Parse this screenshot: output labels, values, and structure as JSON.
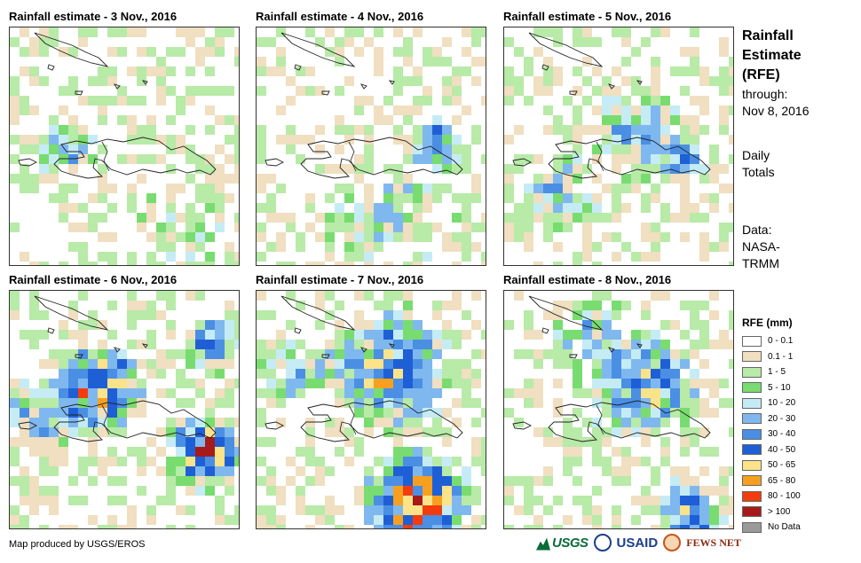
{
  "panels": [
    {
      "title": "Rainfall estimate - 3 Nov., 2016",
      "seed": 3
    },
    {
      "title": "Rainfall estimate - 4 Nov., 2016",
      "seed": 4
    },
    {
      "title": "Rainfall estimate - 5 Nov., 2016",
      "seed": 5
    },
    {
      "title": "Rainfall estimate - 6 Nov., 2016",
      "seed": 6
    },
    {
      "title": "Rainfall estimate - 7 Nov., 2016",
      "seed": 7
    },
    {
      "title": "Rainfall estimate - 8 Nov., 2016",
      "seed": 8
    }
  ],
  "side": {
    "title_line1": "Rainfall",
    "title_line2": "Estimate",
    "title_line3": "(RFE)",
    "through_line1": "through:",
    "through_line2": "Nov 8, 2016",
    "totals_line1": "Daily",
    "totals_line2": "Totals",
    "data_line1": "Data:",
    "data_line2": "NASA-",
    "data_line3": "TRMM"
  },
  "legend": {
    "title": "RFE (mm)",
    "items": [
      {
        "label": "0 - 0.1",
        "color": "#ffffff"
      },
      {
        "label": "0.1 - 1",
        "color": "#f0dfc0"
      },
      {
        "label": "1 - 5",
        "color": "#b8eaa8"
      },
      {
        "label": "5 - 10",
        "color": "#79dc70"
      },
      {
        "label": "10 - 20",
        "color": "#c5ecf5"
      },
      {
        "label": "20 - 30",
        "color": "#7fb8ee"
      },
      {
        "label": "30 - 40",
        "color": "#4a8fe4"
      },
      {
        "label": "40 - 50",
        "color": "#1f5fd6"
      },
      {
        "label": "50 - 65",
        "color": "#fbe38a"
      },
      {
        "label": "65 - 80",
        "color": "#f7a020"
      },
      {
        "label": "80 - 100",
        "color": "#f33c0e"
      },
      {
        "label": "> 100",
        "color": "#a71a1a"
      },
      {
        "label": "No Data",
        "color": "#9a9a9a"
      }
    ]
  },
  "footer": {
    "credit": "Map produced by USGS/EROS",
    "logo_usgs": "USGS",
    "logo_usaid": "USAID",
    "logo_fews": "FEWS NET"
  }
}
